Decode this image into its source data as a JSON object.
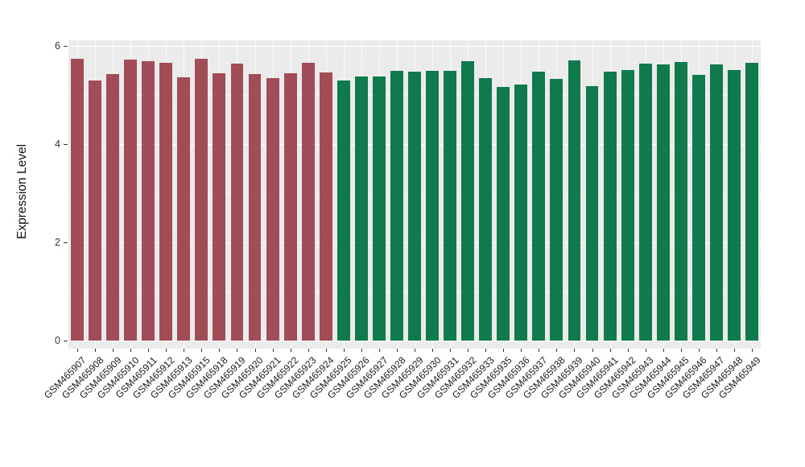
{
  "chart_data": {
    "type": "bar",
    "title": "",
    "xlabel": "",
    "ylabel": "Expression Level",
    "ylim": [
      0,
      6
    ],
    "y_ticks": [
      0,
      2,
      4,
      6
    ],
    "grid": true,
    "legend_position": "none",
    "panel_background": "#EBEBEB",
    "gridline_color": "#FFFFFF",
    "palette": {
      "red": "#A14C56",
      "green": "#0F7A4C"
    },
    "categories": [
      "GSM465907",
      "GSM465908",
      "GSM465909",
      "GSM465910",
      "GSM465911",
      "GSM465912",
      "GSM465913",
      "GSM465915",
      "GSM465918",
      "GSM465919",
      "GSM465920",
      "GSM465921",
      "GSM465922",
      "GSM465923",
      "GSM465924",
      "GSM465925",
      "GSM465926",
      "GSM465927",
      "GSM465928",
      "GSM465929",
      "GSM465930",
      "GSM465931",
      "GSM465932",
      "GSM465933",
      "GSM465935",
      "GSM465936",
      "GSM465937",
      "GSM465938",
      "GSM465939",
      "GSM465940",
      "GSM465941",
      "GSM465942",
      "GSM465943",
      "GSM465944",
      "GSM465945",
      "GSM465946",
      "GSM465947",
      "GSM465948",
      "GSM465949"
    ],
    "values": [
      5.74,
      5.3,
      5.43,
      5.72,
      5.69,
      5.66,
      5.36,
      5.74,
      5.44,
      5.64,
      5.43,
      5.34,
      5.44,
      5.66,
      5.46,
      5.3,
      5.38,
      5.38,
      5.49,
      5.48,
      5.49,
      5.49,
      5.69,
      5.34,
      5.16,
      5.21,
      5.48,
      5.33,
      5.7,
      5.18,
      5.48,
      5.51,
      5.64,
      5.62,
      5.67,
      5.41,
      5.62,
      5.51,
      5.66
    ],
    "groups": [
      "red",
      "red",
      "red",
      "red",
      "red",
      "red",
      "red",
      "red",
      "red",
      "red",
      "red",
      "red",
      "red",
      "red",
      "red",
      "green",
      "green",
      "green",
      "green",
      "green",
      "green",
      "green",
      "green",
      "green",
      "green",
      "green",
      "green",
      "green",
      "green",
      "green",
      "green",
      "green",
      "green",
      "green",
      "green",
      "green",
      "green",
      "green",
      "green"
    ]
  }
}
